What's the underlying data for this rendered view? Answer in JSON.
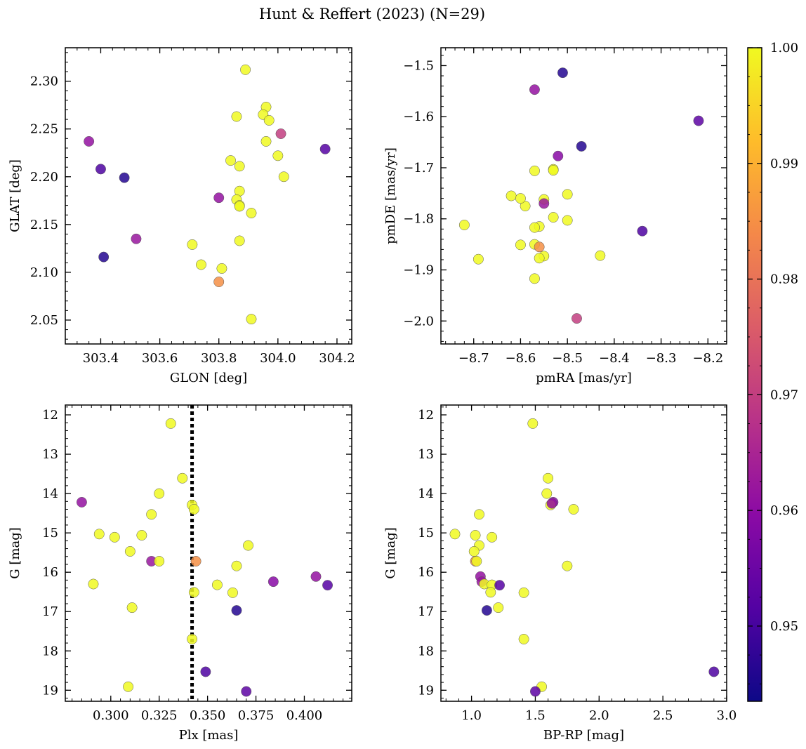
{
  "figure": {
    "title": "Hunt & Reffert (2023) (N=29)"
  },
  "colormap": {
    "name": "plasma",
    "min": 0.9435,
    "max": 1.0,
    "ticks": [
      0.95,
      0.96,
      0.97,
      0.98,
      0.99,
      1.0
    ],
    "tick_labels": [
      "0.95",
      "0.96",
      "0.97",
      "0.98",
      "0.99",
      "1.00"
    ],
    "stops": [
      "#0d0887",
      "#5302a3",
      "#8b0aa5",
      "#b83289",
      "#db5c68",
      "#f48849",
      "#febc2a",
      "#f0f921"
    ]
  },
  "chart_data": [
    {
      "type": "scatter",
      "id": "pos",
      "xlabel": "GLON [deg]",
      "ylabel": "GLAT [deg]",
      "xlim": [
        303.28,
        304.25
      ],
      "ylim": [
        2.025,
        2.335
      ],
      "yinvert": false,
      "xticks": [
        303.4,
        303.6,
        303.8,
        304.0,
        304.2
      ],
      "xtick_labels": [
        "303.4",
        "303.6",
        "303.8",
        "304.0",
        "304.2"
      ],
      "yticks": [
        2.05,
        2.1,
        2.15,
        2.2,
        2.25,
        2.3
      ],
      "ytick_labels": [
        "2.05",
        "2.10",
        "2.15",
        "2.20",
        "2.25",
        "2.30"
      ],
      "x": [
        303.36,
        303.4,
        303.48,
        303.41,
        303.52,
        303.8,
        303.8,
        304.16,
        304.01,
        303.89,
        303.96,
        303.95,
        303.86,
        303.97,
        303.96,
        304.0,
        303.84,
        303.87,
        304.02,
        303.87,
        303.86,
        303.87,
        303.87,
        303.91,
        303.87,
        303.71,
        303.74,
        303.81,
        303.91
      ],
      "y": [
        2.237,
        2.208,
        2.199,
        2.116,
        2.135,
        2.178,
        2.09,
        2.229,
        2.245,
        2.312,
        2.273,
        2.265,
        2.263,
        2.259,
        2.237,
        2.222,
        2.217,
        2.211,
        2.2,
        2.185,
        2.176,
        2.17,
        2.169,
        2.162,
        2.133,
        2.129,
        2.108,
        2.104,
        2.051
      ],
      "c": [
        0.961,
        0.951,
        0.946,
        0.946,
        0.962,
        0.961,
        0.985,
        0.952,
        0.97,
        1.0,
        1.0,
        1.0,
        1.0,
        1.0,
        1.0,
        1.0,
        1.0,
        1.0,
        1.0,
        1.0,
        1.0,
        1.0,
        1.0,
        1.0,
        1.0,
        1.0,
        1.0,
        1.0,
        1.0
      ]
    },
    {
      "type": "scatter",
      "id": "pm",
      "xlabel": "pmRA [mas/yr]",
      "ylabel": "pmDE [mas/yr]",
      "xlim": [
        -8.77,
        -8.16
      ],
      "ylim": [
        -2.045,
        -1.465
      ],
      "yinvert": false,
      "xticks": [
        -8.7,
        -8.6,
        -8.5,
        -8.4,
        -8.3,
        -8.2
      ],
      "xtick_labels": [
        "−8.7",
        "−8.6",
        "−8.5",
        "−8.4",
        "−8.3",
        "−8.2"
      ],
      "yticks": [
        -2.0,
        -1.9,
        -1.8,
        -1.7,
        -1.6,
        -1.5
      ],
      "ytick_labels": [
        "−2.0",
        "−1.9",
        "−1.8",
        "−1.7",
        "−1.6",
        "−1.5"
      ],
      "x": [
        -8.51,
        -8.57,
        -8.22,
        -8.47,
        -8.52,
        -8.53,
        -8.53,
        -8.57,
        -8.62,
        -8.59,
        -8.5,
        -8.55,
        -8.6,
        -8.55,
        -8.53,
        -8.5,
        -8.56,
        -8.57,
        -8.72,
        -8.34,
        -8.43,
        -8.6,
        -8.57,
        -8.56,
        -8.55,
        -8.56,
        -8.69,
        -8.57,
        -8.48
      ],
      "y": [
        -1.514,
        -1.547,
        -1.608,
        -1.658,
        -1.677,
        -1.703,
        -1.705,
        -1.706,
        -1.755,
        -1.775,
        -1.752,
        -1.762,
        -1.76,
        -1.77,
        -1.797,
        -1.803,
        -1.815,
        -1.817,
        -1.812,
        -1.824,
        -1.872,
        -1.851,
        -1.85,
        -1.855,
        -1.873,
        -1.877,
        -1.879,
        -1.917,
        -1.995
      ],
      "c": [
        0.946,
        0.961,
        0.953,
        0.946,
        0.959,
        1.0,
        1.0,
        1.0,
        1.0,
        1.0,
        1.0,
        1.0,
        1.0,
        0.962,
        1.0,
        1.0,
        1.0,
        1.0,
        1.0,
        0.951,
        1.0,
        1.0,
        1.0,
        0.985,
        1.0,
        1.0,
        1.0,
        1.0,
        0.97
      ]
    },
    {
      "type": "scatter",
      "id": "plx",
      "xlabel": "Plx [mas]",
      "ylabel": "G [mag]",
      "xlim": [
        0.2765,
        0.4245
      ],
      "ylim": [
        11.75,
        19.28
      ],
      "yinvert": true,
      "xticks": [
        0.3,
        0.325,
        0.35,
        0.375,
        0.4
      ],
      "xtick_labels": [
        "0.300",
        "0.325",
        "0.350",
        "0.375",
        "0.400"
      ],
      "yticks": [
        12,
        13,
        14,
        15,
        16,
        17,
        18,
        19
      ],
      "ytick_labels": [
        "12",
        "13",
        "14",
        "15",
        "16",
        "17",
        "18",
        "19"
      ],
      "vline": 0.342,
      "x": [
        0.331,
        0.337,
        0.325,
        0.285,
        0.342,
        0.343,
        0.321,
        0.294,
        0.302,
        0.316,
        0.371,
        0.31,
        0.321,
        0.325,
        0.344,
        0.365,
        0.291,
        0.355,
        0.384,
        0.406,
        0.412,
        0.343,
        0.363,
        0.311,
        0.365,
        0.342,
        0.349,
        0.309,
        0.37
      ],
      "y": [
        12.22,
        13.61,
        14.0,
        14.22,
        14.29,
        14.4,
        14.53,
        15.03,
        15.11,
        15.06,
        15.32,
        15.47,
        15.72,
        15.72,
        15.72,
        15.84,
        16.3,
        16.32,
        16.24,
        16.11,
        16.33,
        16.51,
        16.52,
        16.9,
        16.97,
        17.7,
        18.53,
        18.91,
        19.03
      ],
      "c": [
        1.0,
        1.0,
        1.0,
        0.961,
        1.0,
        1.0,
        1.0,
        1.0,
        1.0,
        1.0,
        1.0,
        1.0,
        0.962,
        1.0,
        0.985,
        1.0,
        1.0,
        1.0,
        0.959,
        0.961,
        0.952,
        1.0,
        1.0,
        1.0,
        0.946,
        1.0,
        0.951,
        1.0,
        0.953
      ]
    },
    {
      "type": "scatter",
      "id": "cmd",
      "xlabel": "BP-RP [mag]",
      "ylabel": "G [mag]",
      "xlim": [
        0.76,
        3.0
      ],
      "ylim": [
        11.75,
        19.28
      ],
      "yinvert": true,
      "xticks": [
        1.0,
        1.5,
        2.0,
        2.5,
        3.0
      ],
      "xtick_labels": [
        "1.0",
        "1.5",
        "2.0",
        "2.5",
        "3.0"
      ],
      "yticks": [
        12,
        13,
        14,
        15,
        16,
        17,
        18,
        19
      ],
      "ytick_labels": [
        "12",
        "13",
        "14",
        "15",
        "16",
        "17",
        "18",
        "19"
      ],
      "x": [
        1.48,
        1.6,
        1.59,
        1.64,
        1.62,
        1.8,
        1.06,
        0.87,
        1.03,
        1.16,
        1.06,
        1.02,
        1.03,
        1.04,
        1.75,
        1.07,
        1.08,
        1.1,
        1.16,
        1.22,
        1.15,
        1.41,
        1.21,
        1.12,
        1.41,
        2.9,
        1.55,
        1.5,
        1.63
      ],
      "y": [
        12.22,
        13.61,
        14.0,
        14.22,
        14.29,
        14.4,
        14.53,
        15.03,
        15.06,
        15.11,
        15.32,
        15.47,
        15.72,
        15.72,
        15.84,
        16.11,
        16.24,
        16.3,
        16.32,
        16.33,
        16.51,
        16.52,
        16.9,
        16.97,
        17.7,
        18.53,
        18.91,
        19.03,
        14.25
      ],
      "c": [
        1.0,
        1.0,
        1.0,
        0.959,
        1.0,
        1.0,
        1.0,
        1.0,
        1.0,
        1.0,
        1.0,
        1.0,
        0.985,
        1.0,
        1.0,
        0.961,
        0.962,
        1.0,
        1.0,
        0.952,
        1.0,
        1.0,
        1.0,
        0.946,
        1.0,
        0.951,
        1.0,
        0.953,
        0.961
      ]
    }
  ]
}
